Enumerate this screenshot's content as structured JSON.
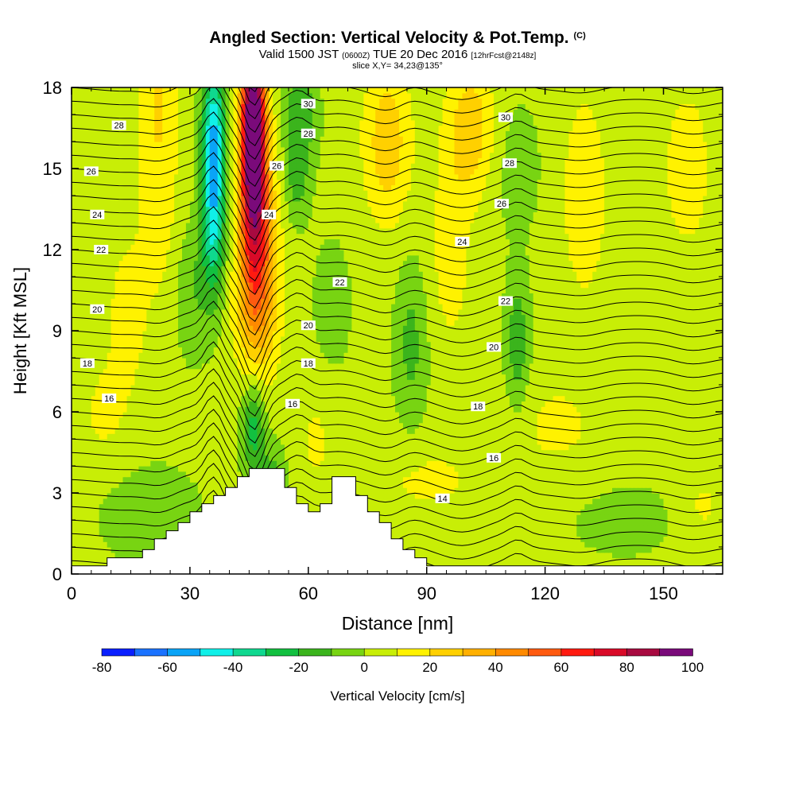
{
  "header": {
    "title": "Angled Section: Vertical Velocity & Pot.Temp.",
    "title_unit": "(C)",
    "valid_prefix": "Valid 1500 JST",
    "valid_utc": "(0600Z)",
    "valid_date": "TUE 20 Dec 2016",
    "forecast": "[12hrFcst@2148z]",
    "slice": "slice X,Y= 34,23@135°"
  },
  "chart_data": {
    "type": "heatmap",
    "xlabel": "Distance [nm]",
    "ylabel": "Height [Kft MSL]",
    "xlim": [
      0,
      165
    ],
    "ylim": [
      0,
      18
    ],
    "x_ticks": [
      0,
      30,
      60,
      90,
      120,
      150
    ],
    "y_ticks": [
      0,
      3,
      6,
      9,
      12,
      15,
      18
    ],
    "colorbar": {
      "label": "Vertical Velocity [cm/s]",
      "levels": [
        -80,
        -70,
        -60,
        -50,
        -40,
        -30,
        -20,
        -10,
        0,
        10,
        20,
        30,
        40,
        50,
        60,
        70,
        80,
        90,
        100
      ],
      "tick_labels": [
        "-80",
        "-60",
        "-40",
        "-20",
        "0",
        "20",
        "40",
        "60",
        "80",
        "100"
      ],
      "colors": [
        "#0a1fff",
        "#1a72ff",
        "#0aa4f7",
        "#10f0e8",
        "#0fd88f",
        "#12c040",
        "#3bb41c",
        "#78d412",
        "#c8ee06",
        "#fff200",
        "#ffd000",
        "#ffb000",
        "#ff8a00",
        "#ff5a10",
        "#ff1a10",
        "#d90a28",
        "#a80a40",
        "#7a0a7a"
      ]
    },
    "background_value": 3,
    "velocity_features": [
      {
        "x": 46,
        "z": 16.5,
        "sx": 3,
        "sz": 3.5,
        "value": 110
      },
      {
        "x": 47,
        "z": 12.5,
        "sx": 4.5,
        "sz": 4,
        "value": 45
      },
      {
        "x": 47,
        "z": 10,
        "sx": 6,
        "sz": 3,
        "value": 18
      },
      {
        "x": 36,
        "z": 16,
        "sx": 3,
        "sz": 3,
        "value": -55
      },
      {
        "x": 36,
        "z": 12.5,
        "sx": 3,
        "sz": 2.5,
        "value": -30
      },
      {
        "x": 31,
        "z": 10.5,
        "sx": 5,
        "sz": 2.5,
        "value": -12
      },
      {
        "x": 58,
        "z": 17,
        "sx": 4,
        "sz": 2,
        "value": -22
      },
      {
        "x": 57,
        "z": 14.5,
        "sx": 3,
        "sz": 1.5,
        "value": -15
      },
      {
        "x": 46,
        "z": 5.5,
        "sx": 3,
        "sz": 1.8,
        "value": -30
      },
      {
        "x": 51,
        "z": 3.4,
        "sx": 3,
        "sz": 1.4,
        "value": -18
      },
      {
        "x": 22,
        "z": 14,
        "sx": 5,
        "sz": 4,
        "value": 14
      },
      {
        "x": 14,
        "z": 9.5,
        "sx": 5,
        "sz": 3,
        "value": 12
      },
      {
        "x": 22,
        "z": 18,
        "sx": 6,
        "sz": 2.5,
        "value": 12
      },
      {
        "x": 80,
        "z": 16,
        "sx": 6,
        "sz": 3,
        "value": 24
      },
      {
        "x": 101,
        "z": 16.5,
        "sx": 6,
        "sz": 2.5,
        "value": 24
      },
      {
        "x": 96,
        "z": 12,
        "sx": 5,
        "sz": 3.5,
        "value": 13
      },
      {
        "x": 130,
        "z": 14,
        "sx": 6,
        "sz": 4,
        "value": 14
      },
      {
        "x": 156,
        "z": 15,
        "sx": 6,
        "sz": 3,
        "value": 14
      },
      {
        "x": 86,
        "z": 8.5,
        "sx": 4,
        "sz": 3,
        "value": -16
      },
      {
        "x": 113,
        "z": 8.5,
        "sx": 3,
        "sz": 2.5,
        "value": -20
      },
      {
        "x": 113,
        "z": 15,
        "sx": 6,
        "sz": 2.5,
        "value": -8
      },
      {
        "x": 66,
        "z": 10,
        "sx": 6,
        "sz": 3,
        "value": -6
      },
      {
        "x": 20,
        "z": 2.2,
        "sx": 14,
        "sz": 2,
        "value": -8
      },
      {
        "x": 8,
        "z": 6,
        "sx": 6,
        "sz": 2,
        "value": 9
      },
      {
        "x": 90,
        "z": 3.5,
        "sx": 16,
        "sz": 1.5,
        "value": 9
      },
      {
        "x": 123,
        "z": 5.5,
        "sx": 12,
        "sz": 2,
        "value": 9
      },
      {
        "x": 140,
        "z": 2,
        "sx": 16,
        "sz": 1.6,
        "value": -6
      },
      {
        "x": 160,
        "z": 2.5,
        "sx": 6,
        "sz": 1.5,
        "value": 9
      },
      {
        "x": 62,
        "z": 5,
        "sx": 4,
        "sz": 2,
        "value": 9
      }
    ],
    "theta_contours": {
      "base": 11.5,
      "lapse_per_kft": 1.0,
      "levels": [
        12,
        12.5,
        13,
        13.5,
        14,
        14.5,
        15,
        15.5,
        16,
        16.5,
        17,
        17.5,
        18,
        18.5,
        19,
        19.5,
        20,
        20.5,
        21,
        21.5,
        22,
        22.5,
        23,
        23.5,
        24,
        24.5,
        25,
        25.5,
        26,
        26.5,
        27,
        27.5,
        28,
        28.5,
        29,
        29.5,
        30,
        30.5,
        31
      ]
    },
    "contour_labels": [
      {
        "text": "28",
        "x": 12,
        "z": 16.6
      },
      {
        "text": "26",
        "x": 5,
        "z": 14.9
      },
      {
        "text": "24",
        "x": 6.5,
        "z": 13.3
      },
      {
        "text": "22",
        "x": 7.5,
        "z": 12.0
      },
      {
        "text": "20",
        "x": 6.5,
        "z": 9.8
      },
      {
        "text": "18",
        "x": 4,
        "z": 7.8
      },
      {
        "text": "16",
        "x": 9.5,
        "z": 6.5
      },
      {
        "text": "30",
        "x": 60,
        "z": 17.4
      },
      {
        "text": "28",
        "x": 60,
        "z": 16.3
      },
      {
        "text": "26",
        "x": 52,
        "z": 15.1
      },
      {
        "text": "24",
        "x": 50,
        "z": 13.3
      },
      {
        "text": "22",
        "x": 68,
        "z": 10.8
      },
      {
        "text": "20",
        "x": 60,
        "z": 9.2
      },
      {
        "text": "18",
        "x": 60,
        "z": 7.8
      },
      {
        "text": "16",
        "x": 56,
        "z": 6.3
      },
      {
        "text": "30",
        "x": 110,
        "z": 16.9
      },
      {
        "text": "28",
        "x": 111,
        "z": 15.2
      },
      {
        "text": "26",
        "x": 109,
        "z": 13.7
      },
      {
        "text": "24",
        "x": 99,
        "z": 12.3
      },
      {
        "text": "22",
        "x": 110,
        "z": 10.1
      },
      {
        "text": "20",
        "x": 107,
        "z": 8.4
      },
      {
        "text": "18",
        "x": 103,
        "z": 6.2
      },
      {
        "text": "16",
        "x": 107,
        "z": 4.3
      },
      {
        "text": "14",
        "x": 94,
        "z": 2.8
      }
    ],
    "terrain": [
      [
        0,
        0.3
      ],
      [
        9,
        0.3
      ],
      [
        9,
        0.6
      ],
      [
        18,
        0.6
      ],
      [
        18,
        0.9
      ],
      [
        21,
        0.9
      ],
      [
        21,
        1.3
      ],
      [
        24,
        1.3
      ],
      [
        24,
        1.6
      ],
      [
        27,
        1.6
      ],
      [
        27,
        1.9
      ],
      [
        30,
        1.9
      ],
      [
        30,
        2.3
      ],
      [
        33,
        2.3
      ],
      [
        33,
        2.6
      ],
      [
        36,
        2.6
      ],
      [
        36,
        2.9
      ],
      [
        39,
        2.9
      ],
      [
        39,
        3.2
      ],
      [
        42,
        3.2
      ],
      [
        42,
        3.6
      ],
      [
        45,
        3.6
      ],
      [
        45,
        3.9
      ],
      [
        54,
        3.9
      ],
      [
        54,
        3.2
      ],
      [
        57,
        3.2
      ],
      [
        57,
        2.6
      ],
      [
        60,
        2.6
      ],
      [
        60,
        2.3
      ],
      [
        63,
        2.3
      ],
      [
        63,
        2.6
      ],
      [
        66,
        2.6
      ],
      [
        66,
        3.6
      ],
      [
        72,
        3.6
      ],
      [
        72,
        2.9
      ],
      [
        75,
        2.9
      ],
      [
        75,
        2.3
      ],
      [
        78,
        2.3
      ],
      [
        78,
        1.9
      ],
      [
        81,
        1.9
      ],
      [
        81,
        1.3
      ],
      [
        84,
        1.3
      ],
      [
        84,
        0.9
      ],
      [
        87,
        0.9
      ],
      [
        87,
        0.6
      ],
      [
        90,
        0.6
      ],
      [
        90,
        0.3
      ],
      [
        165,
        0.3
      ]
    ]
  }
}
